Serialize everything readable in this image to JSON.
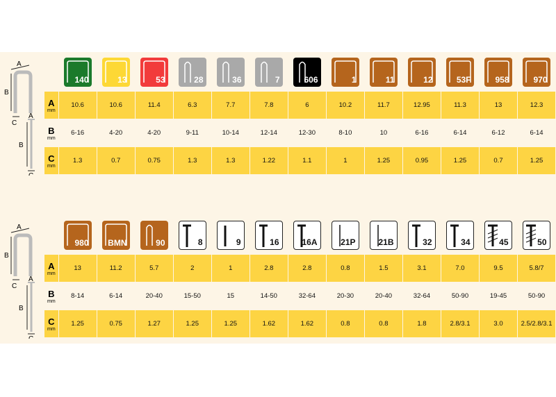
{
  "colors": {
    "row_yellow": "#fdd443",
    "background": "#fdf5e6",
    "brown": "#b5651d",
    "grey": "#a9a9a9",
    "green": "#1b7a2b",
    "yellow": "#fdd835",
    "red": "#f23b3b",
    "black": "#000000"
  },
  "row_labels": {
    "a": "A",
    "b": "B",
    "c": "C",
    "unit": "mm"
  },
  "diagram_labels": {
    "a": "A",
    "b": "B",
    "c": "C"
  },
  "tables": [
    {
      "columns": [
        {
          "label": "140",
          "icon": "staple-icon",
          "color": "#1b7a2b",
          "a": "10.6",
          "b": "6-16",
          "c": "1.3"
        },
        {
          "label": "13",
          "icon": "staple-icon",
          "color": "#fdd835",
          "a": "10.6",
          "b": "4-20",
          "c": "0.7"
        },
        {
          "label": "53",
          "icon": "staple-icon",
          "color": "#f23b3b",
          "a": "11.4",
          "b": "4-20",
          "c": "0.75"
        },
        {
          "label": "28",
          "icon": "narrow-staple-icon",
          "color": "#a9a9a9",
          "a": "6.3",
          "b": "9-11",
          "c": "1.3"
        },
        {
          "label": "36",
          "icon": "narrow-staple-icon",
          "color": "#a9a9a9",
          "a": "7.7",
          "b": "10-14",
          "c": "1.3"
        },
        {
          "label": "7",
          "icon": "narrow-staple-icon",
          "color": "#a9a9a9",
          "a": "7.8",
          "b": "12-14",
          "c": "1.22"
        },
        {
          "label": "606",
          "icon": "narrow-staple-icon",
          "color": "#000000",
          "a": "6",
          "b": "12-30",
          "c": "1.1"
        },
        {
          "label": "1",
          "icon": "staple-icon",
          "color": "#b5651d",
          "a": "10.2",
          "b": "8-10",
          "c": "1"
        },
        {
          "label": "11",
          "icon": "staple-icon",
          "color": "#b5651d",
          "a": "11.7",
          "b": "10",
          "c": "1.25"
        },
        {
          "label": "12",
          "icon": "staple-icon",
          "color": "#b5651d",
          "a": "12.95",
          "b": "6-16",
          "c": "0.95"
        },
        {
          "label": "53F",
          "icon": "staple-icon",
          "color": "#b5651d",
          "a": "11.3",
          "b": "6-14",
          "c": "1.25"
        },
        {
          "label": "958",
          "icon": "staple-icon",
          "color": "#b5651d",
          "a": "13",
          "b": "6-12",
          "c": "0.7"
        },
        {
          "label": "970",
          "icon": "staple-icon",
          "color": "#b5651d",
          "a": "12.3",
          "b": "6-14",
          "c": "1.25"
        }
      ]
    },
    {
      "columns": [
        {
          "label": "980",
          "icon": "staple-icon",
          "color": "#b5651d",
          "a": "13",
          "b": "8-14",
          "c": "1.25"
        },
        {
          "label": "BMN",
          "icon": "staple-icon",
          "color": "#b5651d",
          "a": "11.2",
          "b": "6-14",
          "c": "0.75"
        },
        {
          "label": "90",
          "icon": "narrow-staple-icon",
          "color": "#b5651d",
          "a": "5.7",
          "b": "20-40",
          "c": "1.27"
        },
        {
          "label": "8",
          "icon": "nail-icon",
          "color": "#ffffff",
          "a": "2",
          "b": "15-50",
          "c": "1.25"
        },
        {
          "label": "9",
          "icon": "brad-icon",
          "color": "#ffffff",
          "a": "1",
          "b": "15",
          "c": "1.25"
        },
        {
          "label": "16",
          "icon": "nail-icon",
          "color": "#ffffff",
          "a": "2.8",
          "b": "14-50",
          "c": "1.62"
        },
        {
          "label": "16A",
          "icon": "nail-icon",
          "color": "#ffffff",
          "a": "2.8",
          "b": "32-64",
          "c": "1.62"
        },
        {
          "label": "21P",
          "icon": "pin-icon",
          "color": "#ffffff",
          "a": "0.8",
          "b": "20-30",
          "c": "0.8"
        },
        {
          "label": "21B",
          "icon": "pin-icon",
          "color": "#ffffff",
          "a": "1.5",
          "b": "20-40",
          "c": "0.8"
        },
        {
          "label": "32",
          "icon": "nail-icon",
          "color": "#ffffff",
          "a": "3.1",
          "b": "32-64",
          "c": "1.8"
        },
        {
          "label": "34",
          "icon": "nail-icon",
          "color": "#ffffff",
          "a": "7.0",
          "b": "50-90",
          "c": "2.8/3.1"
        },
        {
          "label": "45",
          "icon": "collated-nail-icon",
          "color": "#ffffff",
          "a": "9.5",
          "b": "19-45",
          "c": "3.0"
        },
        {
          "label": "50",
          "icon": "collated-nail-icon",
          "color": "#ffffff",
          "a": "5.8/7",
          "b": "50-90",
          "c": "2.5/2.8/3.1"
        }
      ]
    }
  ]
}
